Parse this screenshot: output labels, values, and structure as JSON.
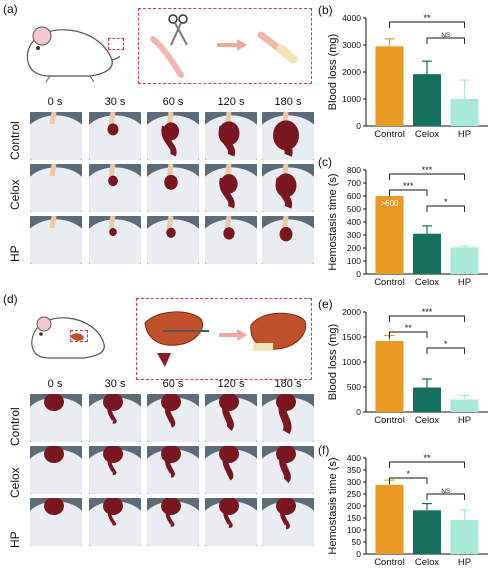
{
  "colors": {
    "control": "#E99A22",
    "celox": "#15705E",
    "hp": "#A8EAD7",
    "dashed": "#D9383C",
    "blood": "#7A1620",
    "paper": "#E9EDF2"
  },
  "top_left": {
    "panel_label": "(a)",
    "times": [
      "0 s",
      "30 s",
      "60 s",
      "120 s",
      "180 s"
    ],
    "rows": [
      "Control",
      "Celox",
      "HP"
    ],
    "icons": [
      "mouse-icon",
      "scissors-icon",
      "tail-cut-icon",
      "arrow-icon",
      "tail-stump-icon"
    ]
  },
  "bottom_left": {
    "panel_label": "(d)",
    "times": [
      "0 s",
      "30 s",
      "60 s",
      "120 s",
      "180 s"
    ],
    "rows": [
      "Control",
      "Celox",
      "HP"
    ],
    "icons": [
      "mouse-icon",
      "liver-cut-icon",
      "arrow-icon",
      "liver-icon"
    ]
  },
  "chart_data": [
    {
      "panel": "(b)",
      "type": "bar",
      "categories": [
        "Control",
        "Celox",
        "HP"
      ],
      "values": [
        2950,
        1920,
        1000
      ],
      "errors": [
        280,
        480,
        700
      ],
      "ylabel": "Blood loss (mg)",
      "ylim": [
        0,
        4000
      ],
      "yticks": [
        0,
        1000,
        2000,
        3000,
        4000
      ],
      "brackets": [
        {
          "from": 0,
          "to": 2,
          "label": "**"
        },
        {
          "from": 1,
          "to": 2,
          "label": "NS"
        }
      ]
    },
    {
      "panel": "(c)",
      "type": "bar",
      "categories": [
        "Control",
        "Celox",
        "HP"
      ],
      "values": [
        600,
        310,
        205
      ],
      "errors": [
        0,
        60,
        10
      ],
      "ylabel": "Hemostasis  time (s)",
      "ylim": [
        0,
        800
      ],
      "yticks": [
        0,
        100,
        200,
        300,
        400,
        500,
        600,
        700,
        800
      ],
      "annotations": [
        {
          "bar": 0,
          "text": ">600"
        }
      ],
      "brackets": [
        {
          "from": 0,
          "to": 2,
          "label": "***"
        },
        {
          "from": 0,
          "to": 1,
          "label": "***"
        },
        {
          "from": 1,
          "to": 2,
          "label": "*"
        }
      ]
    },
    {
      "panel": "(e)",
      "type": "bar",
      "categories": [
        "Control",
        "Celox",
        "HP"
      ],
      "values": [
        1420,
        490,
        250
      ],
      "errors": [
        110,
        170,
        80
      ],
      "ylabel": "Blood loss (mg)",
      "ylim": [
        0,
        2000
      ],
      "yticks": [
        0,
        500,
        1000,
        1500,
        2000
      ],
      "brackets": [
        {
          "from": 0,
          "to": 2,
          "label": "***"
        },
        {
          "from": 0,
          "to": 1,
          "label": "**"
        },
        {
          "from": 1,
          "to": 2,
          "label": "*"
        }
      ]
    },
    {
      "panel": "(f)",
      "type": "bar",
      "categories": [
        "Control",
        "Celox",
        "HP"
      ],
      "values": [
        288,
        182,
        142
      ],
      "errors": [
        20,
        28,
        42
      ],
      "ylabel": "Hemostasis  time (s)",
      "ylim": [
        0,
        400
      ],
      "yticks": [
        0,
        50,
        100,
        150,
        200,
        250,
        300,
        350,
        400
      ],
      "brackets": [
        {
          "from": 0,
          "to": 2,
          "label": "**"
        },
        {
          "from": 0,
          "to": 1,
          "label": "*"
        },
        {
          "from": 1,
          "to": 2,
          "label": "NS"
        }
      ]
    }
  ]
}
